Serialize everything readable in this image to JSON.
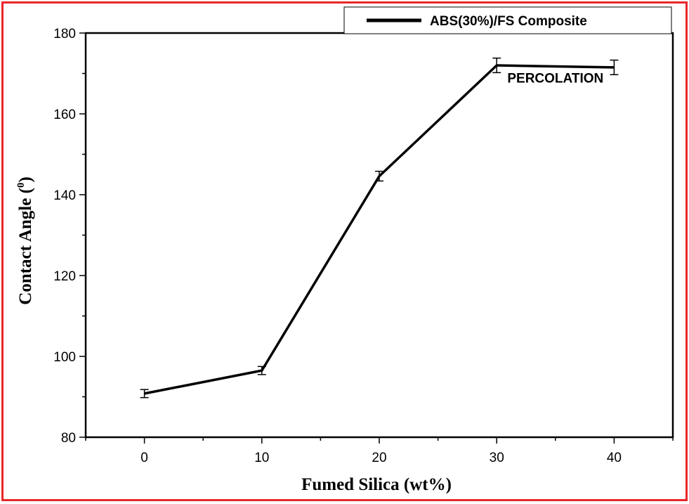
{
  "colors": {
    "frame": "#e8262a",
    "line": "#000000",
    "background": "#ffffff"
  },
  "chart_data": {
    "type": "line",
    "xlabel": "Fumed Silica (wt%)",
    "ylabel_main": "Contact Angle (",
    "ylabel_sup": "0",
    "ylabel_close": ")",
    "xlim": [
      -5,
      45
    ],
    "ylim": [
      80,
      180
    ],
    "x_ticks": [
      0,
      10,
      20,
      30,
      40
    ],
    "y_ticks": [
      80,
      100,
      120,
      140,
      160,
      180
    ],
    "grid": false,
    "legend_position": "top-right",
    "series": [
      {
        "name": "ABS(30%)/FS Composite",
        "x": [
          0,
          10,
          20,
          30,
          40
        ],
        "y": [
          90.8,
          96.5,
          144.6,
          172.0,
          171.5
        ],
        "error": [
          1.0,
          1.0,
          1.2,
          1.8,
          1.8
        ]
      }
    ],
    "annotations": [
      {
        "text": "PERCOLATION",
        "x": 35,
        "y": 169
      }
    ]
  }
}
